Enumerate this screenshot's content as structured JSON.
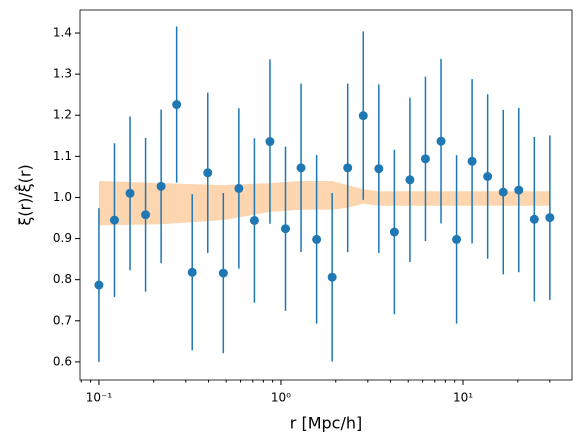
{
  "chart_data": {
    "type": "errorbar_scatter",
    "x_label": "r [Mpc/h]",
    "y_label": "ξ(r)/ξ̂(r)",
    "xscale": "log",
    "xlim": [
      0.0787,
      39.7
    ],
    "ylim": [
      0.556,
      1.456
    ],
    "xticks": [
      {
        "value": 0.1,
        "label": "10⁻¹"
      },
      {
        "value": 1,
        "label": "10⁰"
      },
      {
        "value": 10,
        "label": "10¹"
      }
    ],
    "yticks": [
      0.6,
      0.7,
      0.8,
      0.9,
      {
        "value": 1,
        "label": "1.0"
      },
      1.1,
      1.2,
      1.3,
      1.4
    ],
    "x": [
      0.1,
      0.1217,
      0.1482,
      0.1804,
      0.2196,
      0.2673,
      0.3254,
      0.3961,
      0.4823,
      0.5871,
      0.7147,
      0.87,
      1.059,
      1.289,
      1.57,
      1.911,
      2.326,
      2.832,
      3.448,
      4.197,
      5.11,
      6.22,
      7.573,
      9.219,
      11.22,
      13.66,
      16.64,
      20.25,
      24.65,
      30.0
    ],
    "series": [
      {
        "color": "#1f77b4",
        "values": [
          0.787,
          0.945,
          1.01,
          0.958,
          1.027,
          1.226,
          0.818,
          1.06,
          0.816,
          1.022,
          0.944,
          1.136,
          0.924,
          1.072,
          0.898,
          0.806,
          1.072,
          1.199,
          1.07,
          0.916,
          1.043,
          1.094,
          1.137,
          0.898,
          1.088,
          1.051,
          1.013,
          1.018,
          0.947,
          0.951
        ],
        "yerr": [
          0.187,
          0.187,
          0.187,
          0.187,
          0.187,
          0.19,
          0.19,
          0.195,
          0.195,
          0.195,
          0.2,
          0.2,
          0.2,
          0.205,
          0.205,
          0.205,
          0.205,
          0.205,
          0.205,
          0.2,
          0.2,
          0.2,
          0.2,
          0.205,
          0.2,
          0.2,
          0.2,
          0.2,
          0.2,
          0.2
        ]
      }
    ],
    "band": {
      "color": "#fdd5ae",
      "x": [
        0.1,
        0.2196,
        0.4823,
        0.87,
        1.289,
        1.911,
        2.326,
        2.832,
        3.448,
        30.0
      ],
      "lower": [
        0.932,
        0.935,
        0.945,
        0.965,
        0.97,
        0.97,
        0.975,
        0.985,
        0.98,
        0.98
      ],
      "upper": [
        1.04,
        1.035,
        1.03,
        1.035,
        1.04,
        1.04,
        1.03,
        1.02,
        1.015,
        1.015
      ]
    }
  }
}
